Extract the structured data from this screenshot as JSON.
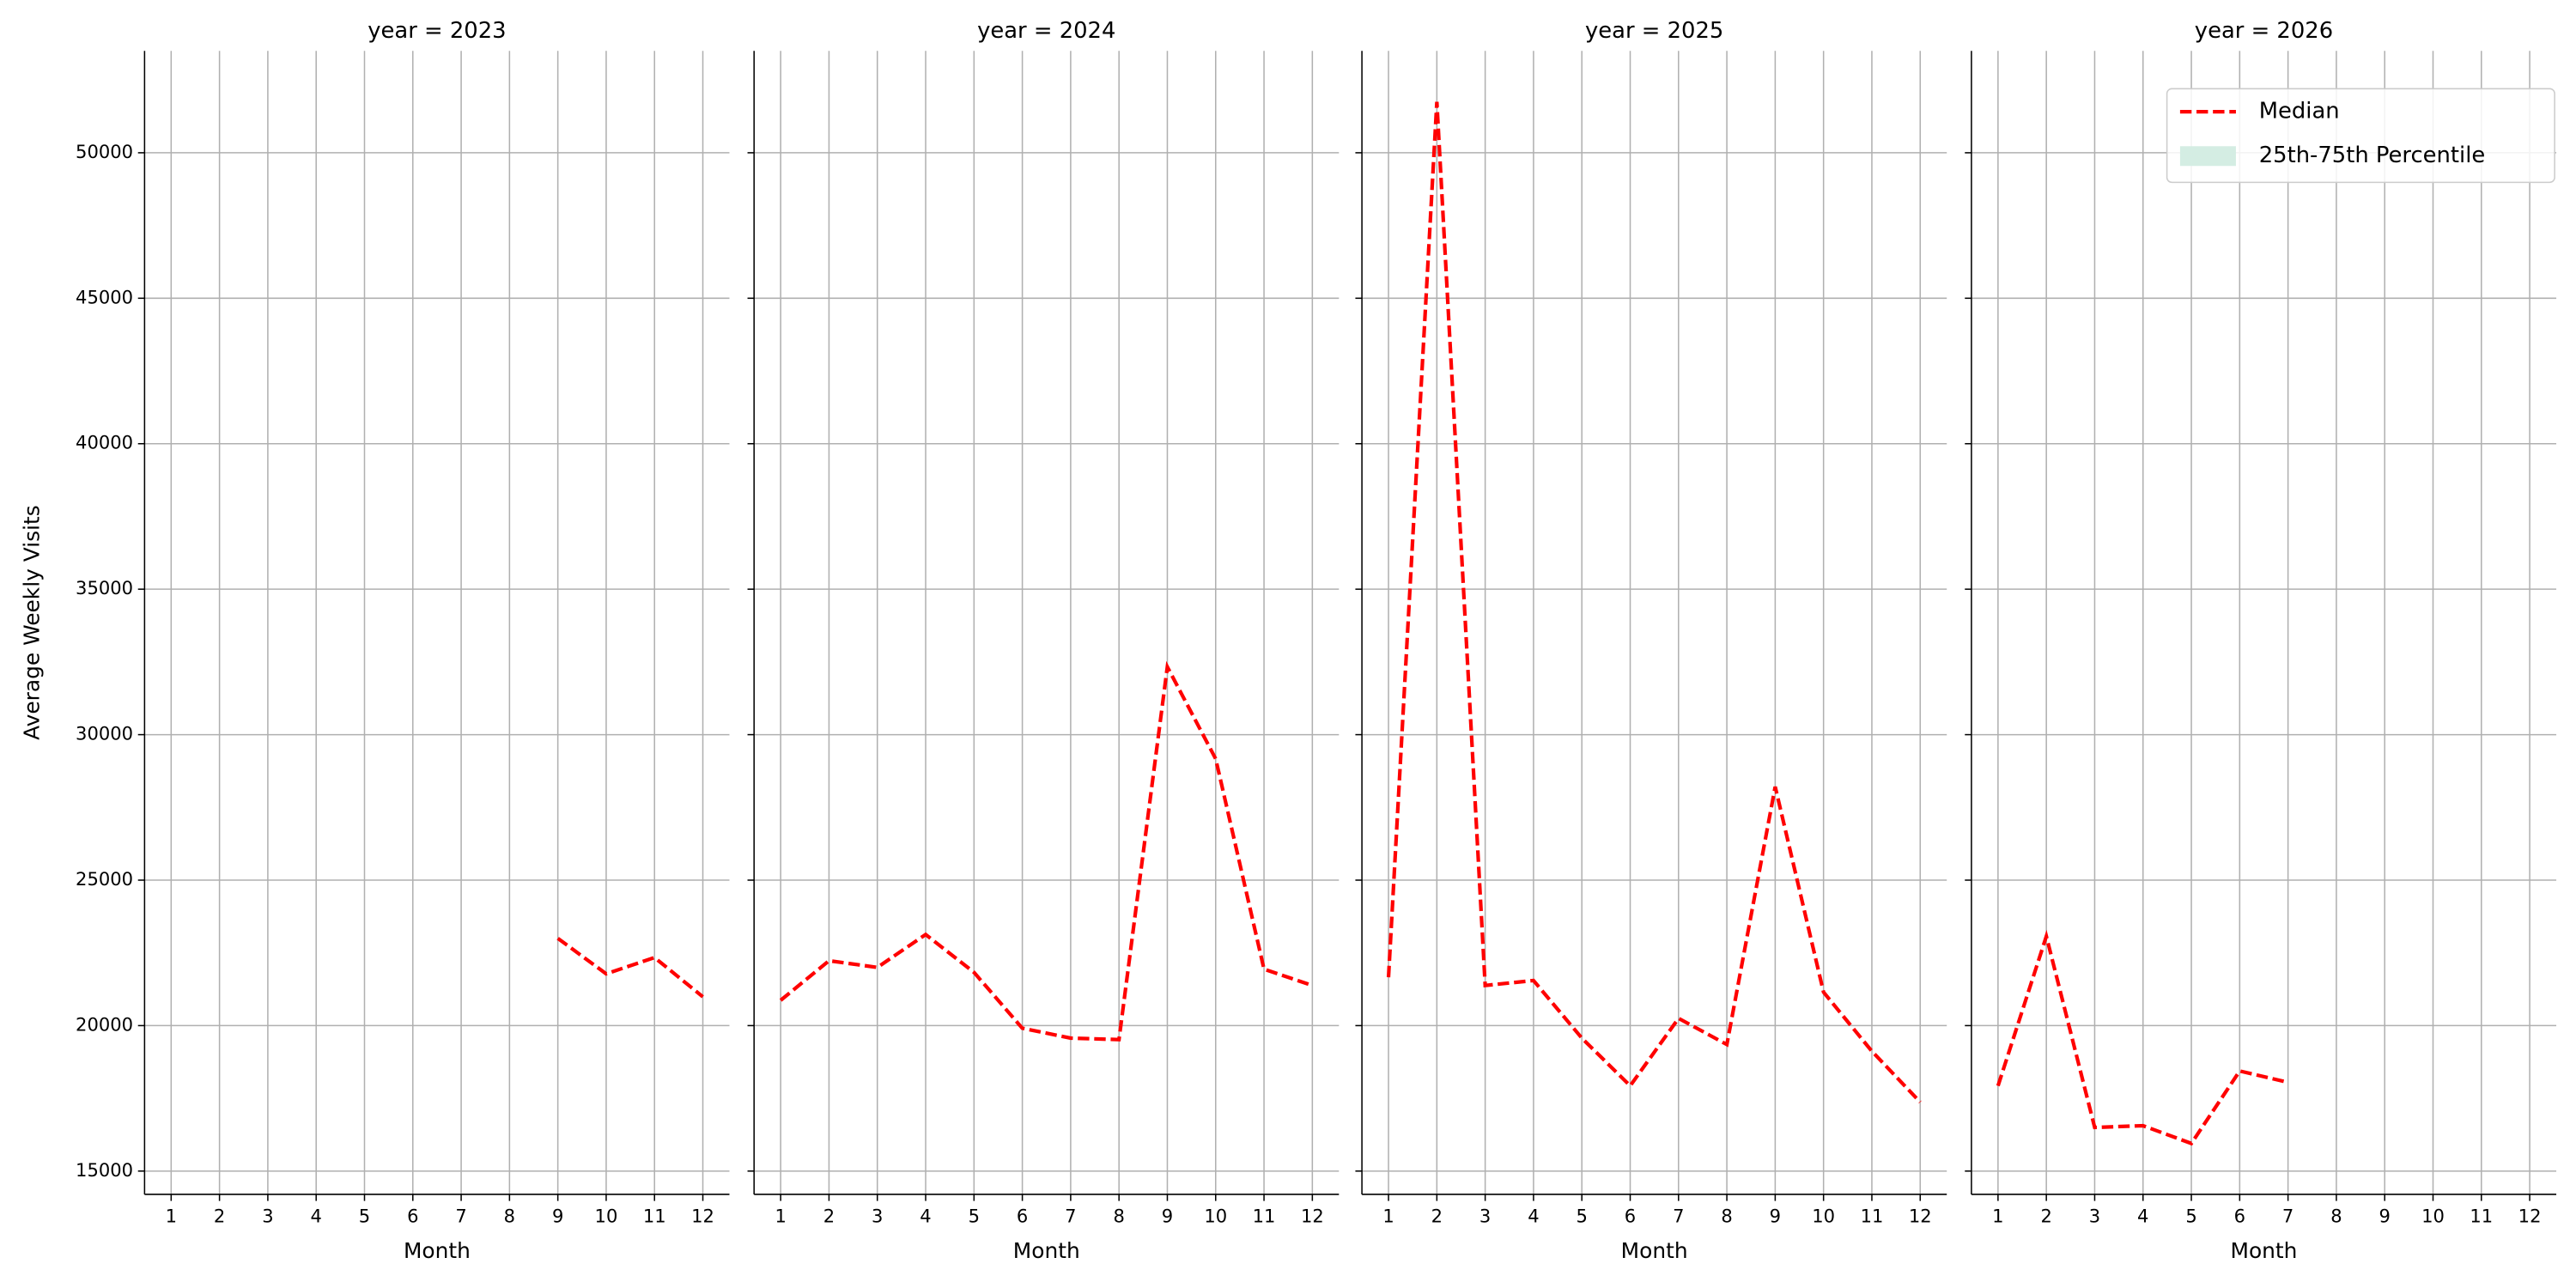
{
  "chart_data": [
    {
      "type": "line",
      "title": "year = 2023",
      "xlabel": "Month",
      "ylabel": "Average Weekly Visits",
      "x": [
        1,
        2,
        3,
        4,
        5,
        6,
        7,
        8,
        9,
        10,
        11,
        12
      ],
      "series": [
        {
          "name": "Median",
          "color": "#ff0000",
          "dash": true,
          "values": [
            null,
            null,
            null,
            null,
            null,
            null,
            null,
            null,
            23000,
            21780,
            22340,
            20990
          ]
        }
      ],
      "xlim": [
        0.45,
        12.55
      ],
      "xticks": [
        1,
        2,
        3,
        4,
        5,
        6,
        7,
        8,
        9,
        10,
        11,
        12
      ],
      "ylim": [
        14200,
        53500
      ],
      "yticks": [
        15000,
        20000,
        25000,
        30000,
        35000,
        40000,
        45000,
        50000
      ],
      "grid": true,
      "ytick_labels": true
    },
    {
      "type": "line",
      "title": "year = 2024",
      "xlabel": "Month",
      "x": [
        1,
        2,
        3,
        4,
        5,
        6,
        7,
        8,
        9,
        10,
        11,
        12
      ],
      "series": [
        {
          "name": "Median",
          "color": "#ff0000",
          "dash": true,
          "values": [
            20870,
            22230,
            22000,
            23130,
            21830,
            19910,
            19570,
            19520,
            32330,
            29170,
            21940,
            21380
          ]
        }
      ],
      "xlim": [
        0.45,
        12.55
      ],
      "xticks": [
        1,
        2,
        3,
        4,
        5,
        6,
        7,
        8,
        9,
        10,
        11,
        12
      ],
      "ylim": [
        14200,
        53500
      ],
      "yticks": [
        15000,
        20000,
        25000,
        30000,
        35000,
        40000,
        45000,
        50000
      ],
      "grid": true,
      "ytick_labels": false
    },
    {
      "type": "line",
      "title": "year = 2025",
      "xlabel": "Month",
      "x": [
        1,
        2,
        3,
        4,
        5,
        6,
        7,
        8,
        9,
        10,
        11,
        12
      ],
      "series": [
        {
          "name": "Median",
          "color": "#ff0000",
          "dash": true,
          "values": [
            21660,
            51750,
            21380,
            21550,
            19570,
            17930,
            20250,
            19350,
            28210,
            21150,
            19120,
            17370
          ]
        }
      ],
      "xlim": [
        0.45,
        12.55
      ],
      "xticks": [
        1,
        2,
        3,
        4,
        5,
        6,
        7,
        8,
        9,
        10,
        11,
        12
      ],
      "ylim": [
        14200,
        53500
      ],
      "yticks": [
        15000,
        20000,
        25000,
        30000,
        35000,
        40000,
        45000,
        50000
      ],
      "grid": true,
      "ytick_labels": false
    },
    {
      "type": "line",
      "title": "year = 2026",
      "xlabel": "Month",
      "x": [
        1,
        2,
        3,
        4,
        5,
        6,
        7,
        8,
        9,
        10,
        11,
        12
      ],
      "series": [
        {
          "name": "Median",
          "color": "#ff0000",
          "dash": true,
          "values": [
            17930,
            23070,
            16500,
            16560,
            15950,
            18440,
            18050,
            null,
            null,
            null,
            null,
            null
          ]
        },
        {
          "name": "25th-75th Percentile",
          "color": "#d4ede3",
          "band": true
        }
      ],
      "xlim": [
        0.45,
        12.55
      ],
      "xticks": [
        1,
        2,
        3,
        4,
        5,
        6,
        7,
        8,
        9,
        10,
        11,
        12
      ],
      "ylim": [
        14200,
        53500
      ],
      "yticks": [
        15000,
        20000,
        25000,
        30000,
        35000,
        40000,
        45000,
        50000
      ],
      "grid": true,
      "ytick_labels": false,
      "legend": "upper right"
    }
  ]
}
